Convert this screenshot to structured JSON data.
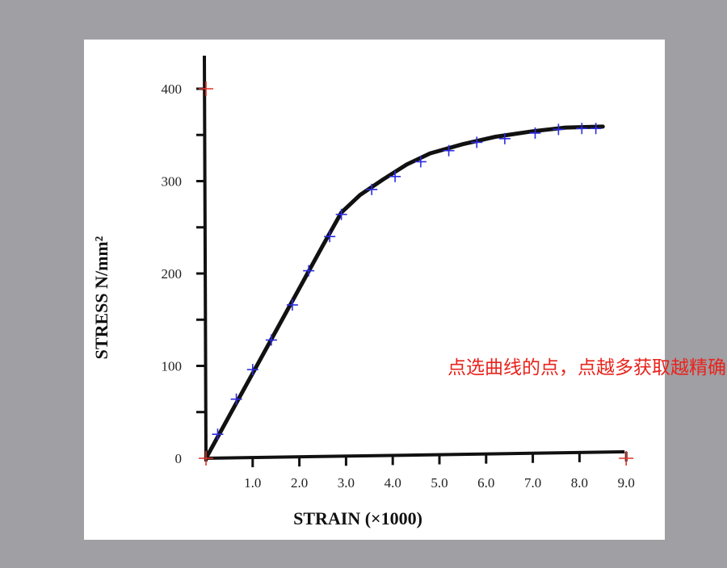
{
  "chart_data": {
    "type": "scatter",
    "xlabel": "STRAIN (×1000)",
    "ylabel": "STRESS N/mm²",
    "xlim": [
      0,
      9.0
    ],
    "ylim": [
      0,
      400
    ],
    "x_ticks": [
      "1.0",
      "2.0",
      "3.0",
      "4.0",
      "5.0",
      "6.0",
      "7.0",
      "8.0",
      "9.0"
    ],
    "y_ticks": [
      "0",
      "100",
      "200",
      "300",
      "400"
    ],
    "curve": {
      "x": [
        0,
        0.5,
        1.0,
        1.5,
        2.0,
        2.5,
        2.9,
        3.3,
        3.8,
        4.3,
        4.8,
        5.5,
        6.2,
        7.0,
        7.7,
        8.5
      ],
      "y": [
        0,
        46,
        92,
        138,
        184,
        230,
        266,
        285,
        302,
        318,
        330,
        340,
        348,
        354,
        358,
        359
      ]
    },
    "picked_points": {
      "x": [
        0.25,
        0.65,
        1.0,
        1.4,
        1.85,
        2.2,
        2.65,
        2.9,
        3.55,
        4.05,
        4.6,
        5.2,
        5.8,
        6.4,
        7.05,
        7.55,
        8.05,
        8.35
      ],
      "y": [
        26,
        64,
        96,
        128,
        166,
        203,
        240,
        264,
        291,
        305,
        321,
        333,
        342,
        346,
        352,
        356,
        357,
        357
      ]
    },
    "calibration_points": {
      "x": [
        0,
        0,
        9.0
      ],
      "y": [
        0,
        400,
        0
      ]
    },
    "colors": {
      "curve": "#111111",
      "picked": "#2b2be0",
      "calibration": "#e0342a"
    }
  },
  "annotation": "点选曲线的点，点越多获取越精确"
}
